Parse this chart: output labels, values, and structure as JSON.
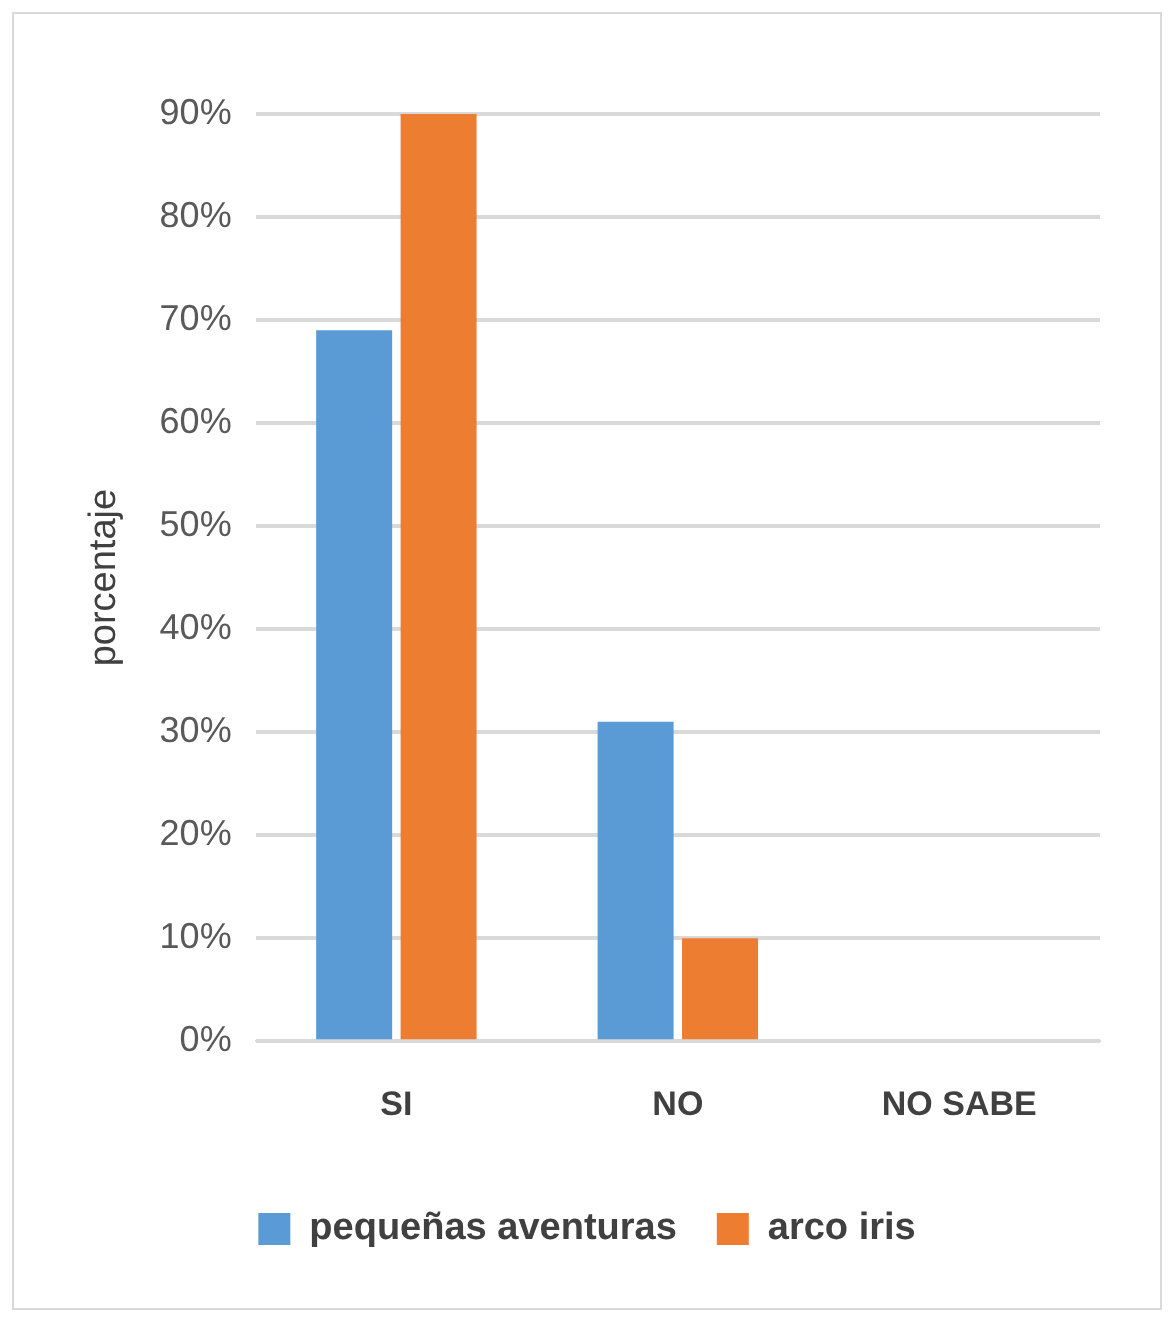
{
  "chart_data": {
    "type": "bar",
    "ylabel": "porcentaje",
    "categories": [
      "SI",
      "NO",
      "NO SABE"
    ],
    "series": [
      {
        "name": "pequeñas aventuras",
        "color": "#5b9bd5",
        "values": [
          69,
          31,
          0
        ]
      },
      {
        "name": "arco iris",
        "color": "#ed7d31",
        "values": [
          90,
          10,
          0
        ]
      }
    ],
    "ylim": [
      0,
      90
    ],
    "yticks": [
      {
        "value": 0,
        "label": "0%"
      },
      {
        "value": 10,
        "label": "10%"
      },
      {
        "value": 20,
        "label": "20%"
      },
      {
        "value": 30,
        "label": "30%"
      },
      {
        "value": 40,
        "label": "40%"
      },
      {
        "value": 50,
        "label": "50%"
      },
      {
        "value": 60,
        "label": "60%"
      },
      {
        "value": 70,
        "label": "70%"
      },
      {
        "value": 80,
        "label": "80%"
      },
      {
        "value": 90,
        "label": "90%"
      }
    ],
    "grid": "y",
    "legend": "bottom"
  }
}
